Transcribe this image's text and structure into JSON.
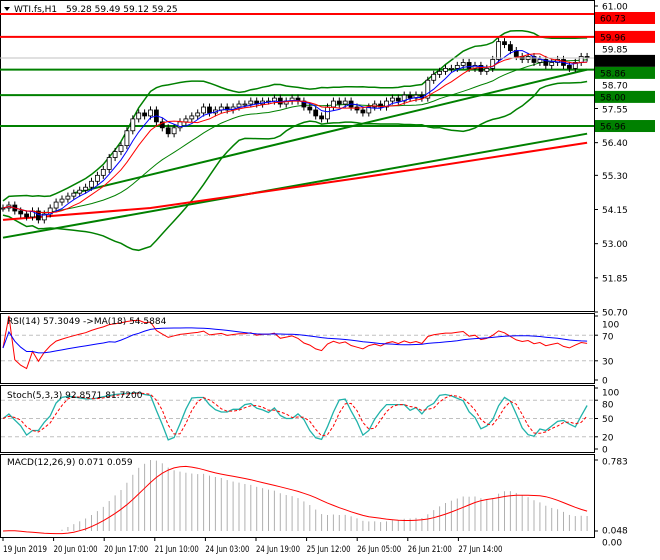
{
  "header": {
    "symbol": "WTI.fs,H1",
    "ohlc": "59.28 59.49 59.12 59.25"
  },
  "rsi": {
    "label": "RSI(14) 57.3049  ->MA(18) 54.5884",
    "ticks": [
      "100",
      "70",
      "30",
      "0"
    ]
  },
  "stoch": {
    "label": "Stoch(5,3,3) 92.8571 81.7200",
    "ticks": [
      "100",
      "80",
      "50",
      "20",
      "0"
    ]
  },
  "macd": {
    "label": "MACD(12,26,9) 0.071 0.059",
    "ticks": [
      "0.783",
      "0.048",
      "0.00"
    ]
  },
  "colors": {
    "up": "#000000",
    "ma_fast": "#0000ff",
    "ma_slow": "#ff0000",
    "bands": "#008000",
    "support": "#008000",
    "resistance": "#ff0000"
  },
  "chart_data": {
    "type": "candlestick",
    "title": "WTI.fs,H1",
    "ylim": [
      50.7,
      61.0
    ],
    "yticks": [
      "61.00",
      "59.85",
      "58.70",
      "57.55",
      "56.40",
      "55.30",
      "54.15",
      "53.00",
      "51.85",
      "50.70"
    ],
    "xticks": [
      "19 Jun 2019",
      "20 Jun 01:00",
      "20 Jun 17:00",
      "21 Jun 10:00",
      "24 Jun 03:00",
      "24 Jun 19:00",
      "25 Jun 12:00",
      "26 Jun 05:00",
      "26 Jun 21:00",
      "27 Jun 14:00"
    ],
    "closes": [
      54.2,
      54.3,
      54.1,
      54.0,
      53.9,
      54.1,
      53.8,
      54.0,
      54.2,
      54.4,
      54.5,
      54.6,
      54.7,
      54.8,
      54.9,
      55.1,
      55.3,
      55.5,
      55.9,
      56.1,
      56.3,
      56.8,
      57.2,
      57.4,
      57.3,
      57.5,
      57.1,
      56.9,
      56.7,
      56.9,
      57.1,
      57.2,
      57.3,
      57.4,
      57.6,
      57.4,
      57.5,
      57.6,
      57.5,
      57.6,
      57.7,
      57.7,
      57.8,
      57.7,
      57.8,
      57.8,
      57.9,
      57.7,
      57.8,
      57.9,
      57.8,
      57.6,
      57.5,
      57.3,
      57.2,
      57.6,
      57.8,
      57.7,
      57.8,
      57.6,
      57.5,
      57.4,
      57.6,
      57.7,
      57.6,
      57.8,
      57.9,
      57.8,
      58.0,
      57.9,
      58.0,
      57.9,
      58.5,
      58.7,
      58.8,
      58.9,
      58.9,
      59.0,
      59.1,
      58.9,
      59.0,
      58.8,
      58.9,
      59.2,
      59.8,
      59.7,
      59.5,
      59.3,
      59.2,
      59.3,
      59.1,
      59.2,
      59.0,
      59.1,
      59.2,
      59.0,
      58.9,
      59.1,
      59.3,
      59.25
    ],
    "levels": [
      {
        "price": 60.73,
        "label": "60.73",
        "kind": "resistance"
      },
      {
        "price": 59.96,
        "label": "59.96",
        "kind": "resistance"
      },
      {
        "price": 58.86,
        "label": "58.86",
        "kind": "support"
      },
      {
        "price": 58.0,
        "label": "58.00",
        "kind": "support"
      },
      {
        "price": 56.96,
        "label": "56.96",
        "kind": "support"
      }
    ],
    "current": {
      "price": 59.25,
      "label": "59.25"
    },
    "lines": [
      {
        "kind": "support",
        "points": [
          [
            0,
            53.2
          ],
          [
            99,
            56.7
          ]
        ]
      },
      {
        "kind": "resistance",
        "points": [
          [
            0,
            53.8
          ],
          [
            25,
            54.2
          ],
          [
            60,
            55.2
          ],
          [
            99,
            56.4
          ]
        ]
      },
      {
        "kind": "support",
        "points": [
          [
            12,
            54.7
          ],
          [
            99,
            58.86
          ]
        ]
      }
    ]
  }
}
